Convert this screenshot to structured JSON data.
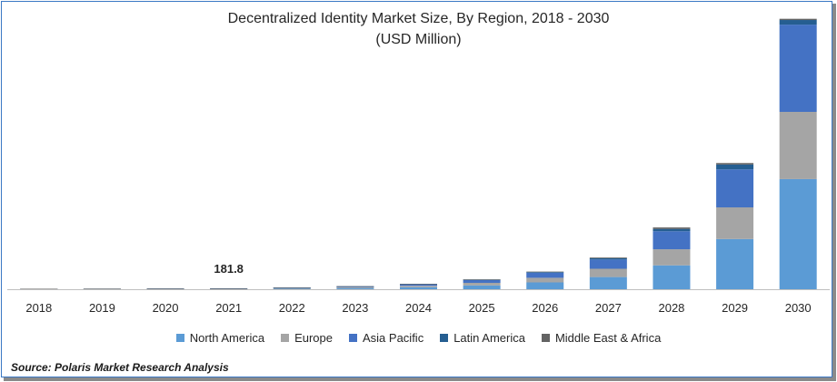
{
  "chart_data": {
    "type": "bar",
    "stacked": true,
    "title": "Decentralized Identity Market Size, By Region, 2018 - 2030",
    "subtitle": "(USD Million)",
    "categories": [
      "2018",
      "2019",
      "2020",
      "2021",
      "2022",
      "2023",
      "2024",
      "2025",
      "2026",
      "2027",
      "2028",
      "2029",
      "2030"
    ],
    "series": [
      {
        "name": "North America",
        "color": "#5b9bd5",
        "values": [
          40,
          45,
          55,
          75,
          140,
          240,
          420,
          780,
          1400,
          2500,
          4900,
          10300,
          22600
        ]
      },
      {
        "name": "Europe",
        "color": "#a5a5a5",
        "values": [
          30,
          35,
          40,
          50,
          90,
          160,
          290,
          530,
          950,
          1700,
          3300,
          6500,
          13800
        ]
      },
      {
        "name": "Asia Pacific",
        "color": "#4472c4",
        "values": [
          20,
          22,
          25,
          40,
          100,
          180,
          320,
          580,
          1050,
          1900,
          3700,
          7800,
          17900
        ]
      },
      {
        "name": "Latin America",
        "color": "#255e91",
        "values": [
          4,
          4,
          5,
          8,
          15,
          25,
          45,
          80,
          140,
          250,
          480,
          1000,
          950
        ]
      },
      {
        "name": "Middle East & Africa",
        "color": "#636363",
        "values": [
          3,
          3,
          4,
          8,
          10,
          15,
          25,
          45,
          80,
          150,
          300,
          300,
          250
        ]
      }
    ],
    "data_labels": [
      {
        "category": "2021",
        "text": "181.8"
      }
    ],
    "ylim": [
      0,
      56000
    ],
    "grid": false,
    "legend": "bottom",
    "xlabel": "",
    "ylabel": ""
  },
  "source": "Source: Polaris  Market Research Analysis"
}
